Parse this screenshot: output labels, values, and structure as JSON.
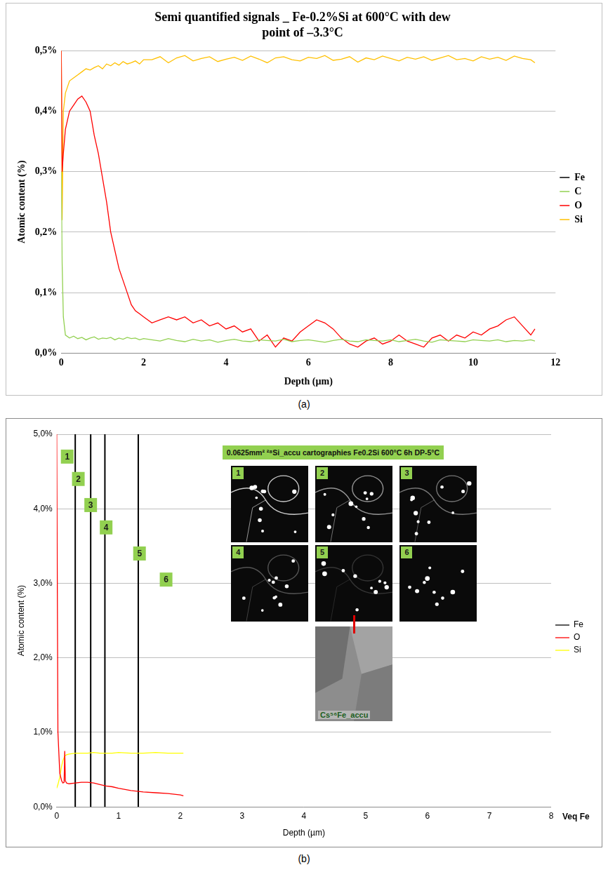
{
  "chart_data": [
    {
      "type": "line",
      "title": "Semi quantified signals _ Fe-0.2%Si at 600°C with dew point of –3.3°C",
      "x_label": "Depth (µm)",
      "y_label": "Atomic content (%)",
      "caption": "(a)",
      "x": [
        0,
        0.02,
        0.05,
        0.1,
        0.2,
        0.3,
        0.4,
        0.5,
        0.6,
        0.7,
        0.8,
        0.9,
        1.0,
        1.1,
        1.2,
        1.3,
        1.4,
        1.5,
        1.6,
        1.7,
        1.8,
        1.9,
        2.0,
        2.2,
        2.4,
        2.6,
        2.8,
        3.0,
        3.2,
        3.4,
        3.6,
        3.8,
        4.0,
        4.2,
        4.4,
        4.6,
        4.8,
        5.0,
        5.2,
        5.4,
        5.6,
        5.8,
        6.0,
        6.2,
        6.4,
        6.6,
        6.8,
        7.0,
        7.2,
        7.4,
        7.6,
        7.8,
        8.0,
        8.2,
        8.4,
        8.6,
        8.8,
        9.0,
        9.2,
        9.4,
        9.6,
        9.8,
        10.0,
        10.2,
        10.4,
        10.6,
        10.8,
        11.0,
        11.2,
        11.4,
        11.5
      ],
      "series": [
        {
          "name": "Fe",
          "color": "#000000",
          "values": [
            null,
            null,
            null,
            null,
            null,
            null,
            null,
            null,
            null,
            null,
            null,
            null,
            null,
            null,
            null,
            null,
            null,
            null,
            null,
            null,
            null,
            null,
            null,
            null,
            null,
            null,
            null,
            null,
            null,
            null,
            null,
            null,
            null,
            null,
            null,
            null,
            null,
            null,
            null,
            null,
            null,
            null,
            null,
            null,
            null,
            null,
            null,
            null,
            null,
            null,
            null,
            null,
            null,
            null,
            null,
            null,
            null,
            null,
            null,
            null,
            null,
            null,
            null,
            null,
            null,
            null,
            null,
            null,
            null,
            null,
            null
          ]
        },
        {
          "name": "C",
          "color": "#92d050",
          "values": [
            0.3,
            0.15,
            0.06,
            0.03,
            0.025,
            0.028,
            0.024,
            0.026,
            0.022,
            0.025,
            0.027,
            0.023,
            0.025,
            0.024,
            0.026,
            0.022,
            0.025,
            0.023,
            0.026,
            0.024,
            0.025,
            0.022,
            0.024,
            0.022,
            0.02,
            0.024,
            0.021,
            0.019,
            0.023,
            0.02,
            0.022,
            0.018,
            0.021,
            0.023,
            0.02,
            0.019,
            0.022,
            0.021,
            0.02,
            0.023,
            0.019,
            0.021,
            0.022,
            0.02,
            0.018,
            0.021,
            0.023,
            0.02,
            0.019,
            0.022,
            0.021,
            0.02,
            0.022,
            0.019,
            0.021,
            0.023,
            0.02,
            0.018,
            0.022,
            0.021,
            0.02,
            0.019,
            0.022,
            0.021,
            0.02,
            0.022,
            0.019,
            0.021,
            0.02,
            0.022,
            0.02
          ]
        },
        {
          "name": "O",
          "color": "#ff0000",
          "values": [
            0.5,
            0.3,
            0.33,
            0.37,
            0.4,
            0.41,
            0.42,
            0.425,
            0.415,
            0.4,
            0.36,
            0.33,
            0.29,
            0.25,
            0.2,
            0.17,
            0.14,
            0.12,
            0.1,
            0.08,
            0.07,
            0.065,
            0.06,
            0.05,
            0.055,
            0.06,
            0.055,
            0.06,
            0.05,
            0.055,
            0.045,
            0.05,
            0.04,
            0.045,
            0.035,
            0.04,
            0.02,
            0.03,
            0.01,
            0.025,
            0.02,
            0.035,
            0.045,
            0.055,
            0.05,
            0.04,
            0.025,
            0.015,
            0.01,
            0.02,
            0.025,
            0.015,
            0.02,
            0.03,
            0.02,
            0.015,
            0.01,
            0.025,
            0.03,
            0.02,
            0.03,
            0.025,
            0.035,
            0.03,
            0.04,
            0.045,
            0.055,
            0.06,
            0.045,
            0.03,
            0.04
          ]
        },
        {
          "name": "Si",
          "color": "#ffc000",
          "values": [
            0.5,
            0.22,
            0.4,
            0.43,
            0.45,
            0.455,
            0.46,
            0.465,
            0.47,
            0.468,
            0.472,
            0.475,
            0.47,
            0.478,
            0.475,
            0.48,
            0.476,
            0.482,
            0.478,
            0.48,
            0.483,
            0.478,
            0.485,
            0.485,
            0.49,
            0.48,
            0.488,
            0.492,
            0.483,
            0.487,
            0.49,
            0.482,
            0.486,
            0.489,
            0.484,
            0.491,
            0.486,
            0.48,
            0.488,
            0.49,
            0.485,
            0.483,
            0.489,
            0.487,
            0.492,
            0.484,
            0.486,
            0.49,
            0.481,
            0.488,
            0.485,
            0.491,
            0.487,
            0.483,
            0.489,
            0.486,
            0.49,
            0.484,
            0.488,
            0.492,
            0.485,
            0.487,
            0.483,
            0.49,
            0.486,
            0.489,
            0.484,
            0.491,
            0.487,
            0.485,
            0.48
          ]
        }
      ],
      "xlim": [
        0,
        12
      ],
      "xticks": [
        0,
        2,
        4,
        6,
        8,
        10,
        12
      ],
      "ylim": [
        0,
        0.5
      ],
      "yticks": [
        {
          "value": 0,
          "label": "0,0%"
        },
        {
          "value": 0.1,
          "label": "0,1%"
        },
        {
          "value": 0.2,
          "label": "0,2%"
        },
        {
          "value": 0.3,
          "label": "0,3%"
        },
        {
          "value": 0.4,
          "label": "0,4%"
        },
        {
          "value": 0.5,
          "label": "0,5%"
        }
      ],
      "grid": true,
      "legend": "right"
    },
    {
      "type": "line",
      "x_label": "Depth (µm)",
      "x_unit_label": "Veq Fe",
      "y_label": "Atomic content (%)",
      "caption": "(b)",
      "x": [
        0,
        0.02,
        0.05,
        0.08,
        0.1,
        0.12,
        0.13,
        0.14,
        0.16,
        0.2,
        0.3,
        0.4,
        0.5,
        0.6,
        0.7,
        0.8,
        0.9,
        1.0,
        1.2,
        1.4,
        1.6,
        1.8,
        2.0,
        2.05
      ],
      "series": [
        {
          "name": "Fe",
          "color": "#000000",
          "values": [
            null,
            null,
            null,
            null,
            null,
            null,
            null,
            null,
            null,
            null,
            null,
            null,
            null,
            null,
            null,
            null,
            null,
            null,
            null,
            null,
            null,
            null,
            null,
            null
          ]
        },
        {
          "name": "O",
          "color": "#ff0000",
          "values": [
            5,
            1.0,
            0.45,
            0.35,
            0.32,
            0.33,
            0.75,
            0.35,
            0.32,
            0.31,
            0.32,
            0.33,
            0.33,
            0.32,
            0.3,
            0.28,
            0.27,
            0.25,
            0.22,
            0.2,
            0.19,
            0.18,
            0.16,
            0.15
          ]
        },
        {
          "name": "Si",
          "color": "#ffff00",
          "values": [
            0.25,
            0.3,
            0.4,
            0.55,
            0.62,
            0.66,
            0.68,
            0.69,
            0.7,
            0.71,
            0.72,
            0.72,
            0.72,
            0.73,
            0.72,
            0.72,
            0.72,
            0.73,
            0.72,
            0.72,
            0.73,
            0.72,
            0.72,
            0.72
          ]
        }
      ],
      "vertical_lines": [
        0.3,
        0.55,
        0.78,
        1.32
      ],
      "zone_labels": [
        {
          "label": "1",
          "x": 0.17,
          "y": 4.7
        },
        {
          "label": "2",
          "x": 0.35,
          "y": 4.4
        },
        {
          "label": "3",
          "x": 0.55,
          "y": 4.05
        },
        {
          "label": "4",
          "x": 0.8,
          "y": 3.75
        },
        {
          "label": "5",
          "x": 1.34,
          "y": 3.4
        },
        {
          "label": "6",
          "x": 1.77,
          "y": 3.05
        }
      ],
      "inset": {
        "title": "0.0625mm² ²⁸Si_accu cartographies Fe0.2Si 600°C 6h DP-5°C",
        "maps": [
          "1",
          "2",
          "3",
          "4",
          "5",
          "6"
        ],
        "bottom_map": "Cs⁵⁶Fe_accu"
      },
      "xlim": [
        0,
        8
      ],
      "xticks": [
        0,
        1,
        2,
        3,
        4,
        5,
        6,
        7,
        8
      ],
      "ylim": [
        0,
        5
      ],
      "yticks": [
        {
          "value": 0,
          "label": "0,0%"
        },
        {
          "value": 1,
          "label": "1,0%"
        },
        {
          "value": 2,
          "label": "2,0%"
        },
        {
          "value": 3,
          "label": "3,0%"
        },
        {
          "value": 4,
          "label": "4,0%"
        },
        {
          "value": 5,
          "label": "5,0%"
        }
      ],
      "grid": true,
      "legend": "right"
    }
  ]
}
